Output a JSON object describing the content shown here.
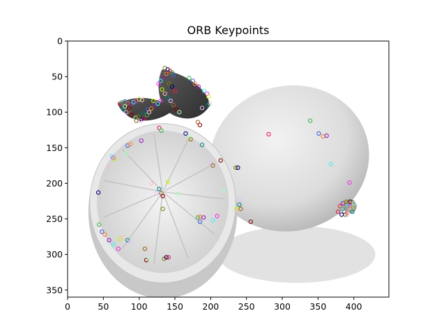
{
  "chart_data": {
    "type": "image",
    "title": "ORB Keypoints",
    "xlabel": "",
    "ylabel": "",
    "xlim": [
      0,
      449
    ],
    "ylim": [
      360,
      0
    ],
    "x_ticks": [
      0,
      50,
      100,
      150,
      200,
      250,
      300,
      350,
      400
    ],
    "y_ticks": [
      0,
      50,
      100,
      150,
      200,
      250,
      300,
      350
    ],
    "grid": false,
    "image_content": "grayscale photograph of a whole lemon and a halved lemon with a leaf",
    "keypoint_colors": [
      "#e6194b",
      "#3cb44b",
      "#4363d8",
      "#f58231",
      "#911eb4",
      "#46f0f0",
      "#f032e6",
      "#bcf60c",
      "#fabebe",
      "#008080",
      "#e6beff",
      "#9a6324",
      "#800000",
      "#aaffc3",
      "#808000",
      "#000075"
    ],
    "keypoints": [
      [
        73,
        88
      ],
      [
        76,
        86
      ],
      [
        80,
        85
      ],
      [
        84,
        88
      ],
      [
        88,
        90
      ],
      [
        92,
        86
      ],
      [
        96,
        84
      ],
      [
        100,
        82
      ],
      [
        104,
        83
      ],
      [
        78,
        96
      ],
      [
        82,
        100
      ],
      [
        86,
        98
      ],
      [
        90,
        104
      ],
      [
        95,
        108
      ],
      [
        99,
        106
      ],
      [
        103,
        110
      ],
      [
        107,
        109
      ],
      [
        111,
        104
      ],
      [
        112,
        96
      ],
      [
        117,
        95
      ],
      [
        122,
        90
      ],
      [
        126,
        88
      ],
      [
        130,
        84
      ],
      [
        120,
        84
      ],
      [
        114,
        100
      ],
      [
        106,
        102
      ],
      [
        101,
        112
      ],
      [
        96,
        112
      ],
      [
        86,
        94
      ],
      [
        80,
        92
      ],
      [
        136,
        38
      ],
      [
        140,
        40
      ],
      [
        143,
        42
      ],
      [
        146,
        44
      ],
      [
        148,
        48
      ],
      [
        138,
        46
      ],
      [
        134,
        52
      ],
      [
        130,
        56
      ],
      [
        127,
        60
      ],
      [
        132,
        68
      ],
      [
        136,
        74
      ],
      [
        140,
        80
      ],
      [
        144,
        84
      ],
      [
        148,
        90
      ],
      [
        152,
        96
      ],
      [
        156,
        100
      ],
      [
        142,
        60
      ],
      [
        146,
        64
      ],
      [
        150,
        70
      ],
      [
        170,
        52
      ],
      [
        175,
        56
      ],
      [
        178,
        60
      ],
      [
        183,
        64
      ],
      [
        191,
        70
      ],
      [
        195,
        74
      ],
      [
        197,
        78
      ],
      [
        199,
        88
      ],
      [
        196,
        90
      ],
      [
        188,
        94
      ],
      [
        182,
        114
      ],
      [
        185,
        118
      ],
      [
        170,
        134
      ],
      [
        172,
        138
      ],
      [
        165,
        130
      ],
      [
        128,
        122
      ],
      [
        131,
        126
      ],
      [
        84,
        147
      ],
      [
        88,
        145
      ],
      [
        103,
        140
      ],
      [
        62,
        162
      ],
      [
        64,
        164
      ],
      [
        66,
        166
      ],
      [
        57,
        176
      ],
      [
        188,
        146
      ],
      [
        200,
        172
      ],
      [
        203,
        175
      ],
      [
        214,
        168
      ],
      [
        218,
        210
      ],
      [
        235,
        178
      ],
      [
        238,
        178
      ],
      [
        281,
        131
      ],
      [
        339,
        112
      ],
      [
        351,
        130
      ],
      [
        357,
        134
      ],
      [
        362,
        133
      ],
      [
        368,
        173
      ],
      [
        394,
        199
      ],
      [
        140,
        198
      ],
      [
        117,
        200
      ],
      [
        128,
        208
      ],
      [
        124,
        214
      ],
      [
        131,
        214
      ],
      [
        133,
        218
      ],
      [
        154,
        215
      ],
      [
        133,
        236
      ],
      [
        43,
        213
      ],
      [
        381,
        232
      ],
      [
        384,
        236
      ],
      [
        387,
        240
      ],
      [
        390,
        242
      ],
      [
        385,
        228
      ],
      [
        392,
        230
      ],
      [
        395,
        232
      ],
      [
        397,
        235
      ],
      [
        394,
        238
      ],
      [
        398,
        240
      ],
      [
        391,
        244
      ],
      [
        388,
        244
      ],
      [
        395,
        226
      ],
      [
        400,
        228
      ],
      [
        389,
        226
      ],
      [
        383,
        244
      ],
      [
        378,
        240
      ],
      [
        44,
        258
      ],
      [
        48,
        268
      ],
      [
        52,
        272
      ],
      [
        58,
        280
      ],
      [
        64,
        286
      ],
      [
        71,
        292
      ],
      [
        73,
        278
      ],
      [
        78,
        276
      ],
      [
        84,
        280
      ],
      [
        88,
        282
      ],
      [
        108,
        292
      ],
      [
        110,
        308
      ],
      [
        114,
        306
      ],
      [
        135,
        306
      ],
      [
        138,
        304
      ],
      [
        141,
        304
      ],
      [
        182,
        248
      ],
      [
        185,
        254
      ],
      [
        185,
        247
      ],
      [
        190,
        248
      ],
      [
        203,
        252
      ],
      [
        209,
        246
      ],
      [
        236,
        236
      ],
      [
        238,
        238
      ],
      [
        240,
        230
      ],
      [
        241,
        222
      ],
      [
        242,
        236
      ],
      [
        256,
        254
      ],
      [
        82,
        158
      ]
    ]
  }
}
